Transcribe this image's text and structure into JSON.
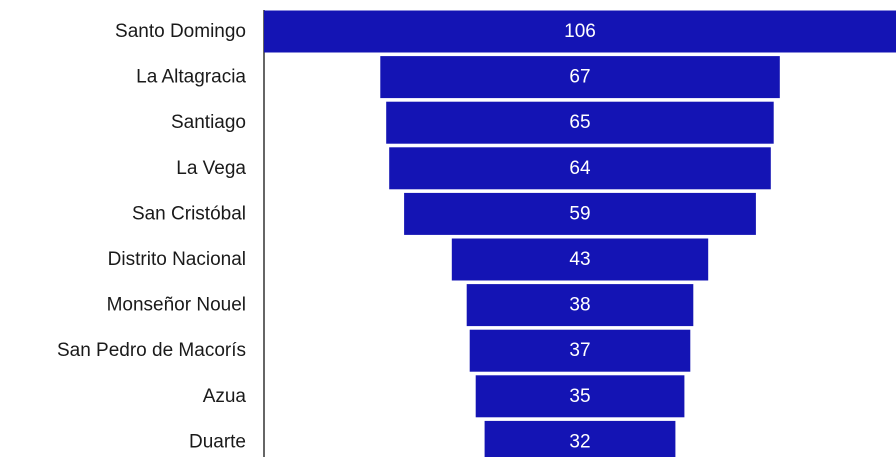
{
  "chart_data": {
    "type": "bar",
    "subtype": "funnel",
    "orientation": "horizontal",
    "categories": [
      "Santo Domingo",
      "La Altagracia",
      "Santiago",
      "La Vega",
      "San Cristóbal",
      "Distrito Nacional",
      "Monseñor Nouel",
      "San Pedro de Macorís",
      "Azua",
      "Duarte"
    ],
    "values": [
      106,
      67,
      65,
      64,
      59,
      43,
      38,
      37,
      35,
      32
    ],
    "data_labels": [
      "106",
      "67",
      "65",
      "64",
      "59",
      "43",
      "38",
      "37",
      "35",
      "32"
    ],
    "xlim": [
      0,
      106
    ],
    "grid": false,
    "legend": "none",
    "bar_color": "#1414B4",
    "label_color": "#ffffff"
  }
}
